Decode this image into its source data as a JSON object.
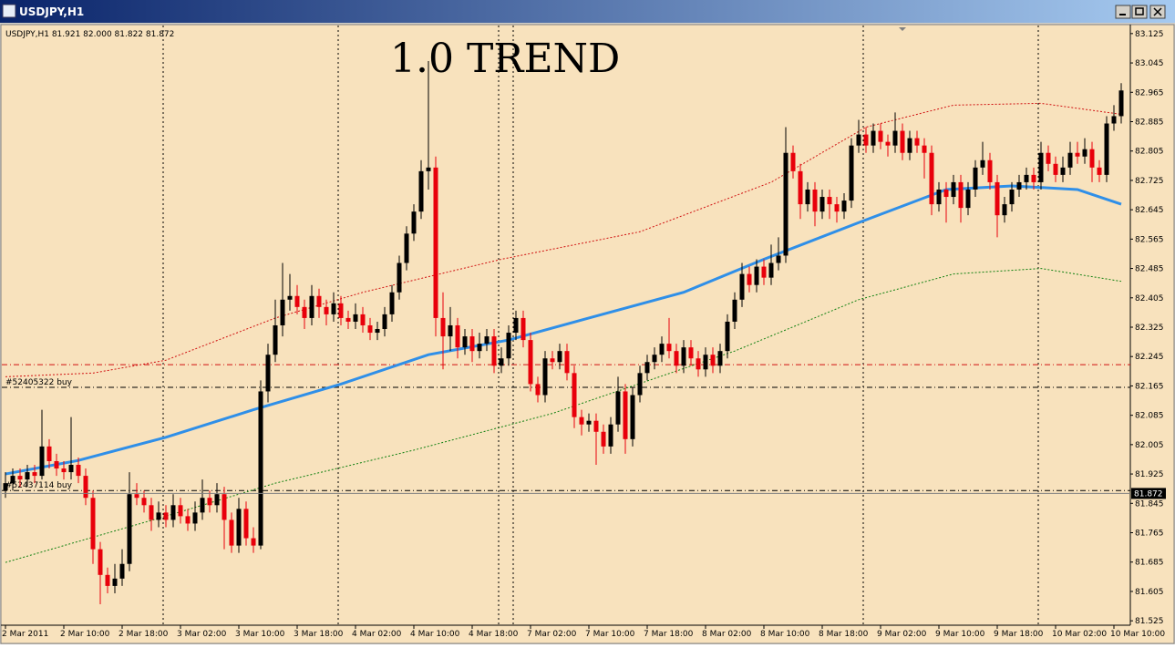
{
  "window_title": "USDJPY,H1",
  "chart_data": {
    "type": "candlestick",
    "info": "USDJPY,H1  81.921 82.000 81.822 81.872",
    "title": "1.0 TREND",
    "ylim": [
      81.508,
      83.142
    ],
    "yticks": [
      83.125,
      83.045,
      82.965,
      82.885,
      82.805,
      82.725,
      82.645,
      82.565,
      82.485,
      82.405,
      82.325,
      82.245,
      82.165,
      82.085,
      82.005,
      81.925,
      81.845,
      81.765,
      81.685,
      81.605,
      81.525
    ],
    "xlabels": [
      "2 Mar 2011",
      "2 Mar 10:00",
      "2 Mar 18:00",
      "3 Mar 02:00",
      "3 Mar 10:00",
      "3 Mar 18:00",
      "4 Mar 02:00",
      "4 Mar 10:00",
      "4 Mar 18:00",
      "7 Mar 02:00",
      "7 Mar 10:00",
      "7 Mar 18:00",
      "8 Mar 02:00",
      "8 Mar 10:00",
      "8 Mar 18:00",
      "9 Mar 02:00",
      "9 Mar 10:00",
      "9 Mar 18:00",
      "10 Mar 02:00",
      "10 Mar 10:00"
    ],
    "up_color": "#000000",
    "down_color": "#e8000b",
    "candles": [
      [
        81.88,
        81.93,
        81.86,
        81.9
      ],
      [
        81.9,
        81.94,
        81.88,
        81.92
      ],
      [
        81.92,
        81.94,
        81.89,
        81.91
      ],
      [
        81.91,
        81.95,
        81.89,
        81.93
      ],
      [
        81.93,
        81.95,
        81.9,
        81.92
      ],
      [
        81.92,
        82.1,
        81.91,
        82.0
      ],
      [
        82.0,
        82.02,
        81.94,
        81.96
      ],
      [
        81.96,
        81.98,
        81.92,
        81.94
      ],
      [
        81.94,
        81.96,
        81.91,
        81.93
      ],
      [
        81.93,
        82.08,
        81.91,
        81.95
      ],
      [
        81.95,
        81.97,
        81.9,
        81.92
      ],
      [
        81.92,
        81.94,
        81.84,
        81.86
      ],
      [
        81.86,
        81.88,
        81.68,
        81.72
      ],
      [
        81.72,
        81.74,
        81.57,
        81.65
      ],
      [
        81.65,
        81.67,
        81.6,
        81.62
      ],
      [
        81.62,
        81.68,
        81.6,
        81.64
      ],
      [
        81.64,
        81.72,
        81.62,
        81.68
      ],
      [
        81.68,
        81.93,
        81.66,
        81.87
      ],
      [
        81.87,
        81.9,
        81.84,
        81.86
      ],
      [
        81.86,
        81.88,
        81.82,
        81.84
      ],
      [
        81.84,
        81.86,
        81.77,
        81.8
      ],
      [
        81.8,
        81.85,
        81.78,
        81.82
      ],
      [
        81.82,
        81.84,
        81.78,
        81.8
      ],
      [
        81.8,
        81.87,
        81.78,
        81.84
      ],
      [
        81.84,
        81.86,
        81.79,
        81.81
      ],
      [
        81.81,
        81.83,
        81.77,
        81.79
      ],
      [
        81.79,
        81.85,
        81.77,
        81.82
      ],
      [
        81.82,
        81.91,
        81.8,
        81.86
      ],
      [
        81.86,
        81.88,
        81.82,
        81.84
      ],
      [
        81.84,
        81.9,
        81.82,
        81.87
      ],
      [
        81.87,
        81.89,
        81.72,
        81.8
      ],
      [
        81.8,
        81.82,
        81.71,
        81.73
      ],
      [
        81.73,
        81.86,
        81.71,
        81.83
      ],
      [
        81.83,
        81.85,
        81.73,
        81.75
      ],
      [
        81.75,
        81.78,
        81.71,
        81.73
      ],
      [
        81.73,
        82.18,
        81.72,
        82.15
      ],
      [
        82.15,
        82.28,
        82.12,
        82.25
      ],
      [
        82.25,
        82.4,
        82.23,
        82.33
      ],
      [
        82.33,
        82.5,
        82.3,
        82.4
      ],
      [
        82.4,
        82.47,
        82.37,
        82.41
      ],
      [
        82.41,
        82.44,
        82.36,
        82.38
      ],
      [
        82.38,
        82.4,
        82.32,
        82.35
      ],
      [
        82.35,
        82.44,
        82.33,
        82.41
      ],
      [
        82.41,
        82.43,
        82.35,
        82.38
      ],
      [
        82.38,
        82.4,
        82.33,
        82.36
      ],
      [
        82.36,
        82.42,
        82.34,
        82.39
      ],
      [
        82.39,
        82.41,
        82.33,
        82.35
      ],
      [
        82.35,
        82.37,
        82.32,
        82.34
      ],
      [
        82.34,
        82.39,
        82.32,
        82.36
      ],
      [
        82.36,
        82.38,
        82.31,
        82.33
      ],
      [
        82.33,
        82.35,
        82.29,
        82.31
      ],
      [
        82.31,
        82.34,
        82.29,
        82.32
      ],
      [
        82.32,
        82.38,
        82.3,
        82.36
      ],
      [
        82.36,
        82.44,
        82.34,
        82.42
      ],
      [
        82.42,
        82.52,
        82.4,
        82.5
      ],
      [
        82.5,
        82.6,
        82.48,
        82.58
      ],
      [
        82.58,
        82.66,
        82.56,
        82.64
      ],
      [
        82.64,
        82.78,
        82.62,
        82.75
      ],
      [
        82.75,
        83.05,
        82.7,
        82.76
      ],
      [
        82.76,
        82.79,
        82.3,
        82.35
      ],
      [
        82.35,
        82.42,
        82.21,
        82.3
      ],
      [
        82.3,
        82.38,
        82.26,
        82.33
      ],
      [
        82.33,
        82.35,
        82.24,
        82.27
      ],
      [
        82.27,
        82.32,
        82.25,
        82.3
      ],
      [
        82.3,
        82.32,
        82.23,
        82.26
      ],
      [
        82.26,
        82.31,
        82.24,
        82.28
      ],
      [
        82.28,
        82.32,
        82.26,
        82.3
      ],
      [
        82.3,
        82.32,
        82.2,
        82.22
      ],
      [
        82.22,
        82.27,
        82.2,
        82.24
      ],
      [
        82.24,
        82.33,
        82.22,
        82.31
      ],
      [
        82.31,
        82.37,
        82.29,
        82.35
      ],
      [
        82.35,
        82.37,
        82.27,
        82.29
      ],
      [
        82.29,
        82.31,
        82.15,
        82.17
      ],
      [
        82.17,
        82.19,
        82.12,
        82.14
      ],
      [
        82.14,
        82.26,
        82.12,
        82.24
      ],
      [
        82.24,
        82.26,
        82.21,
        82.23
      ],
      [
        82.23,
        82.28,
        82.21,
        82.26
      ],
      [
        82.26,
        82.28,
        82.18,
        82.2
      ],
      [
        82.2,
        82.22,
        82.05,
        82.08
      ],
      [
        82.08,
        82.1,
        82.03,
        82.06
      ],
      [
        82.06,
        82.09,
        82.04,
        82.07
      ],
      [
        82.07,
        82.09,
        81.95,
        82.04
      ],
      [
        82.04,
        82.06,
        81.98,
        82.0
      ],
      [
        82.0,
        82.08,
        81.98,
        82.06
      ],
      [
        82.06,
        82.19,
        82.04,
        82.15
      ],
      [
        82.15,
        82.17,
        81.98,
        82.02
      ],
      [
        82.02,
        82.16,
        82.0,
        82.14
      ],
      [
        82.14,
        82.22,
        82.12,
        82.2
      ],
      [
        82.2,
        82.25,
        82.18,
        82.23
      ],
      [
        82.23,
        82.27,
        82.21,
        82.25
      ],
      [
        82.25,
        82.3,
        82.23,
        82.28
      ],
      [
        82.28,
        82.35,
        82.24,
        82.26
      ],
      [
        82.26,
        82.28,
        82.2,
        82.22
      ],
      [
        82.22,
        82.29,
        82.2,
        82.27
      ],
      [
        82.27,
        82.29,
        82.22,
        82.24
      ],
      [
        82.24,
        82.26,
        82.19,
        82.21
      ],
      [
        82.21,
        82.27,
        82.19,
        82.25
      ],
      [
        82.25,
        82.27,
        82.2,
        82.22
      ],
      [
        82.22,
        82.28,
        82.2,
        82.26
      ],
      [
        82.26,
        82.36,
        82.24,
        82.34
      ],
      [
        82.34,
        82.42,
        82.32,
        82.4
      ],
      [
        82.4,
        82.5,
        82.38,
        82.47
      ],
      [
        82.47,
        82.49,
        82.42,
        82.44
      ],
      [
        82.44,
        82.51,
        82.42,
        82.49
      ],
      [
        82.49,
        82.51,
        82.44,
        82.46
      ],
      [
        82.46,
        82.55,
        82.44,
        82.5
      ],
      [
        82.5,
        82.57,
        82.48,
        82.52
      ],
      [
        82.52,
        82.87,
        82.5,
        82.8
      ],
      [
        82.8,
        82.82,
        82.73,
        82.75
      ],
      [
        82.75,
        82.77,
        82.62,
        82.66
      ],
      [
        82.66,
        82.72,
        82.64,
        82.7
      ],
      [
        82.7,
        82.72,
        82.6,
        82.64
      ],
      [
        82.64,
        82.7,
        82.62,
        82.68
      ],
      [
        82.68,
        82.7,
        82.62,
        82.66
      ],
      [
        82.66,
        82.68,
        82.61,
        82.64
      ],
      [
        82.64,
        82.69,
        82.62,
        82.67
      ],
      [
        82.67,
        82.84,
        82.65,
        82.82
      ],
      [
        82.82,
        82.89,
        82.8,
        82.85
      ],
      [
        82.85,
        82.87,
        82.8,
        82.82
      ],
      [
        82.82,
        82.88,
        82.8,
        82.86
      ],
      [
        82.86,
        82.88,
        82.81,
        82.83
      ],
      [
        82.83,
        82.85,
        82.79,
        82.82
      ],
      [
        82.82,
        82.91,
        82.8,
        82.86
      ],
      [
        82.86,
        82.88,
        82.78,
        82.8
      ],
      [
        82.8,
        82.86,
        82.78,
        82.84
      ],
      [
        82.84,
        82.86,
        82.8,
        82.82
      ],
      [
        82.82,
        82.84,
        82.73,
        82.8
      ],
      [
        82.8,
        82.82,
        82.63,
        82.66
      ],
      [
        82.66,
        82.72,
        82.64,
        82.7
      ],
      [
        82.7,
        82.72,
        82.61,
        82.68
      ],
      [
        82.68,
        82.74,
        82.66,
        82.72
      ],
      [
        82.72,
        82.74,
        82.61,
        82.65
      ],
      [
        82.65,
        82.72,
        82.63,
        82.7
      ],
      [
        82.7,
        82.78,
        82.68,
        82.76
      ],
      [
        82.76,
        82.83,
        82.74,
        82.78
      ],
      [
        82.78,
        82.8,
        82.7,
        82.72
      ],
      [
        82.72,
        82.74,
        82.57,
        82.63
      ],
      [
        82.63,
        82.68,
        82.61,
        82.66
      ],
      [
        82.66,
        82.72,
        82.64,
        82.7
      ],
      [
        82.7,
        82.74,
        82.68,
        82.72
      ],
      [
        82.72,
        82.76,
        82.7,
        82.74
      ],
      [
        82.74,
        82.76,
        82.7,
        82.72
      ],
      [
        82.72,
        82.83,
        82.7,
        82.8
      ],
      [
        82.8,
        82.82,
        82.75,
        82.77
      ],
      [
        82.77,
        82.79,
        82.72,
        82.74
      ],
      [
        82.74,
        82.79,
        82.72,
        82.76
      ],
      [
        82.76,
        82.83,
        82.74,
        82.8
      ],
      [
        82.8,
        82.83,
        82.77,
        82.79
      ],
      [
        82.79,
        82.84,
        82.77,
        82.81
      ],
      [
        82.81,
        82.83,
        82.72,
        82.76
      ],
      [
        82.76,
        82.78,
        82.72,
        82.74
      ],
      [
        82.74,
        82.9,
        82.72,
        82.88
      ],
      [
        82.88,
        82.93,
        82.86,
        82.9
      ],
      [
        82.9,
        82.99,
        82.88,
        82.97
      ]
    ],
    "indicators": [
      {
        "color": "#2f8fe8",
        "x": [
          0,
          10,
          22,
          34,
          46,
          58,
          69,
          80,
          93,
          104,
          117,
          129,
          138,
          147,
          153
        ],
        "values": [
          81.925,
          81.962,
          82.025,
          82.1,
          82.17,
          82.25,
          82.29,
          82.35,
          82.42,
          82.51,
          82.61,
          82.7,
          82.71,
          82.7,
          82.66
        ]
      },
      {
        "color": "#d01010",
        "x": [
          0,
          12,
          22,
          37,
          49,
          68,
          87,
          105,
          118,
          130,
          142,
          153
        ],
        "values": [
          82.19,
          82.2,
          82.235,
          82.35,
          82.42,
          82.51,
          82.585,
          82.72,
          82.87,
          82.93,
          82.935,
          82.905
        ]
      },
      {
        "color": "#108010",
        "x": [
          0,
          22,
          37,
          56,
          75,
          100,
          117,
          130,
          142,
          153
        ],
        "values": [
          81.684,
          81.81,
          81.9,
          81.99,
          82.09,
          82.26,
          82.4,
          82.47,
          82.485,
          82.45
        ]
      }
    ],
    "levels": [
      {
        "value": 82.223,
        "color": "#d01010"
      },
      {
        "value": 82.161,
        "color": "#000000",
        "label": "#52405322 buy"
      },
      {
        "value": 81.88,
        "color": "#000000",
        "label": "#52437114 buy"
      }
    ],
    "bid": 81.872
  }
}
